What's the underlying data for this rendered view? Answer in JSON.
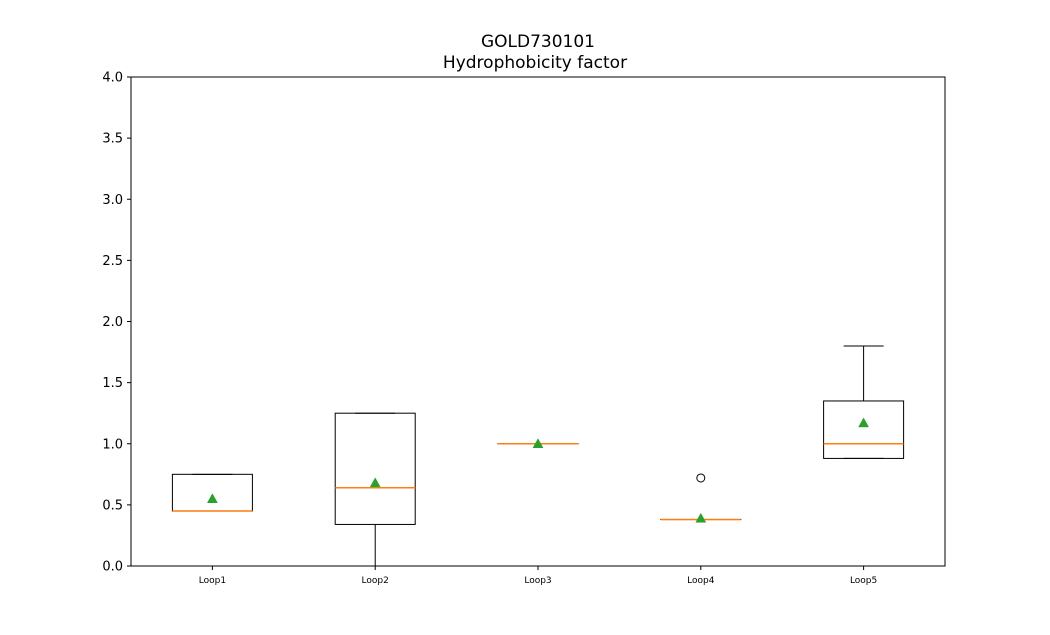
{
  "chart_data": {
    "type": "box",
    "title": "GOLD730101",
    "subtitle": "Hydrophobicity factor",
    "xlabel": "",
    "ylabel": "",
    "ylim": [
      0.0,
      4.0
    ],
    "yticks": [
      "0.0",
      "0.5",
      "1.0",
      "1.5",
      "2.0",
      "2.5",
      "3.0",
      "3.5",
      "4.0"
    ],
    "grid": false,
    "categories": [
      "Loop1",
      "Loop2",
      "Loop3",
      "Loop4",
      "Loop5"
    ],
    "boxes": [
      {
        "category": "Loop1",
        "whisker_low": 0.45,
        "q1": 0.45,
        "median": 0.45,
        "q3": 0.75,
        "whisker_high": 0.75,
        "mean": 0.55,
        "outliers": []
      },
      {
        "category": "Loop2",
        "whisker_low": 0.0,
        "q1": 0.34,
        "median": 0.64,
        "q3": 1.25,
        "whisker_high": 1.25,
        "mean": 0.68,
        "outliers": []
      },
      {
        "category": "Loop3",
        "whisker_low": 1.0,
        "q1": 1.0,
        "median": 1.0,
        "q3": 1.0,
        "whisker_high": 1.0,
        "mean": 1.0,
        "outliers": []
      },
      {
        "category": "Loop4",
        "whisker_low": 0.38,
        "q1": 0.38,
        "median": 0.38,
        "q3": 0.38,
        "whisker_high": 0.38,
        "mean": 0.39,
        "outliers": [
          0.72
        ]
      },
      {
        "category": "Loop5",
        "whisker_low": 0.88,
        "q1": 0.88,
        "median": 1.0,
        "q3": 1.35,
        "whisker_high": 1.8,
        "mean": 1.17,
        "outliers": []
      }
    ],
    "colors": {
      "box": "#000000",
      "median": "#ff7f0e",
      "mean": "#2ca02c",
      "outlier": "#000000"
    }
  }
}
